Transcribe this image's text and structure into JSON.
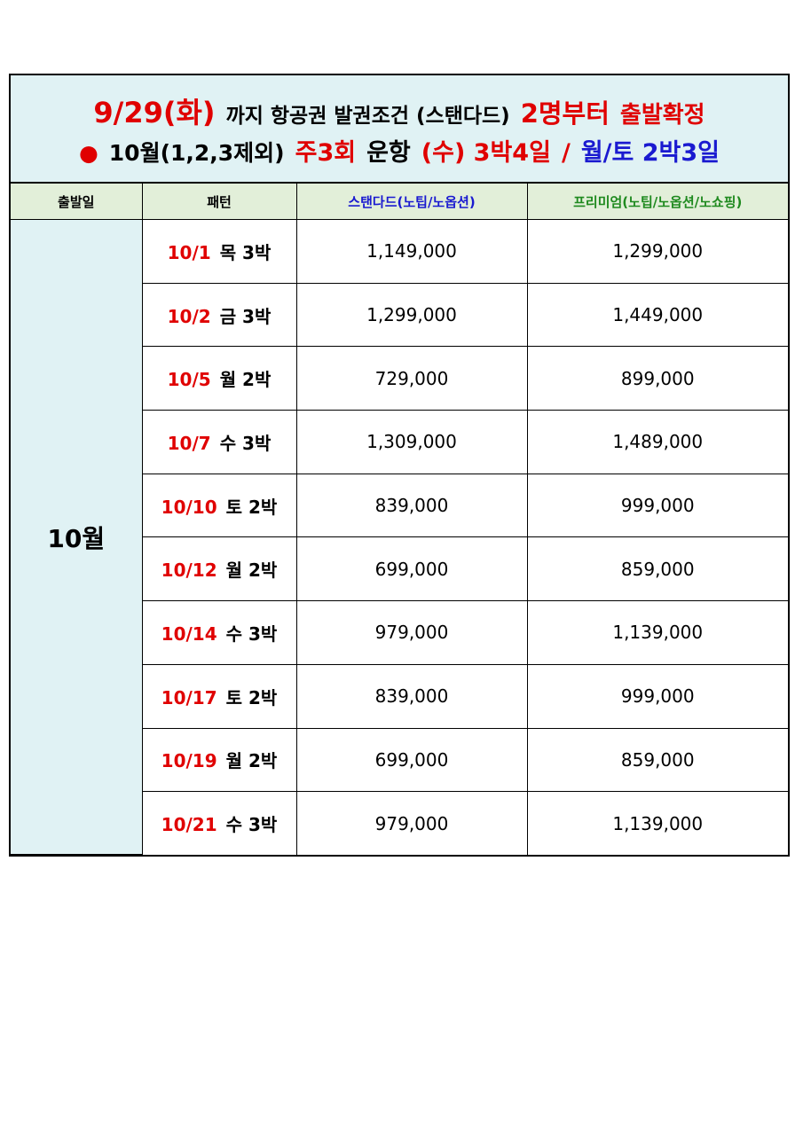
{
  "header": {
    "line1": [
      {
        "text": "9/29(화)",
        "color": "#e00000",
        "size": 32
      },
      {
        "text": "까지 항공권 발권조건 (스탠다드)",
        "color": "#000000",
        "size": 23
      },
      {
        "text": "2명부터",
        "color": "#e00000",
        "size": 29
      },
      {
        "text": "출발확정",
        "color": "#e00000",
        "size": 26
      }
    ],
    "line2": [
      {
        "text": "●",
        "color": "#e00000",
        "size": 25
      },
      {
        "text": "10월(1,2,3제외)",
        "color": "#000000",
        "size": 25
      },
      {
        "text": "주3회",
        "color": "#e00000",
        "size": 27
      },
      {
        "text": "운항",
        "color": "#000000",
        "size": 27
      },
      {
        "text": "(수) 3박4일",
        "color": "#e00000",
        "size": 27
      },
      {
        "text": "/",
        "color": "#e00000",
        "size": 27
      },
      {
        "text": "월/토 2박3일",
        "color": "#1a1ad0",
        "size": 27
      }
    ]
  },
  "table": {
    "columns": [
      {
        "text": "출발일",
        "color": "#000000"
      },
      {
        "text": "패턴",
        "color": "#000000"
      },
      {
        "text": "스탠다드(노팁/노옵션)",
        "color": "#1a1ad0"
      },
      {
        "text": "프리미엄(노팁/노옵션/노쇼핑)",
        "color": "#1f8a1f"
      }
    ],
    "month": "10월",
    "rows": [
      {
        "date": "10/1",
        "day": "목 3박",
        "standard": "1,149,000",
        "premium": "1,299,000"
      },
      {
        "date": "10/2",
        "day": "금 3박",
        "standard": "1,299,000",
        "premium": "1,449,000"
      },
      {
        "date": "10/5",
        "day": "월 2박",
        "standard": "729,000",
        "premium": "899,000"
      },
      {
        "date": "10/7",
        "day": "수 3박",
        "standard": "1,309,000",
        "premium": "1,489,000"
      },
      {
        "date": "10/10",
        "day": "토 2박",
        "standard": "839,000",
        "premium": "999,000"
      },
      {
        "date": "10/12",
        "day": "월 2박",
        "standard": "699,000",
        "premium": "859,000"
      },
      {
        "date": "10/14",
        "day": "수 3박",
        "standard": "979,000",
        "premium": "1,139,000"
      },
      {
        "date": "10/17",
        "day": "토 2박",
        "standard": "839,000",
        "premium": "999,000"
      },
      {
        "date": "10/19",
        "day": "월 2박",
        "standard": "699,000",
        "premium": "859,000"
      },
      {
        "date": "10/21",
        "day": "수 3박",
        "standard": "979,000",
        "premium": "1,139,000"
      }
    ]
  }
}
